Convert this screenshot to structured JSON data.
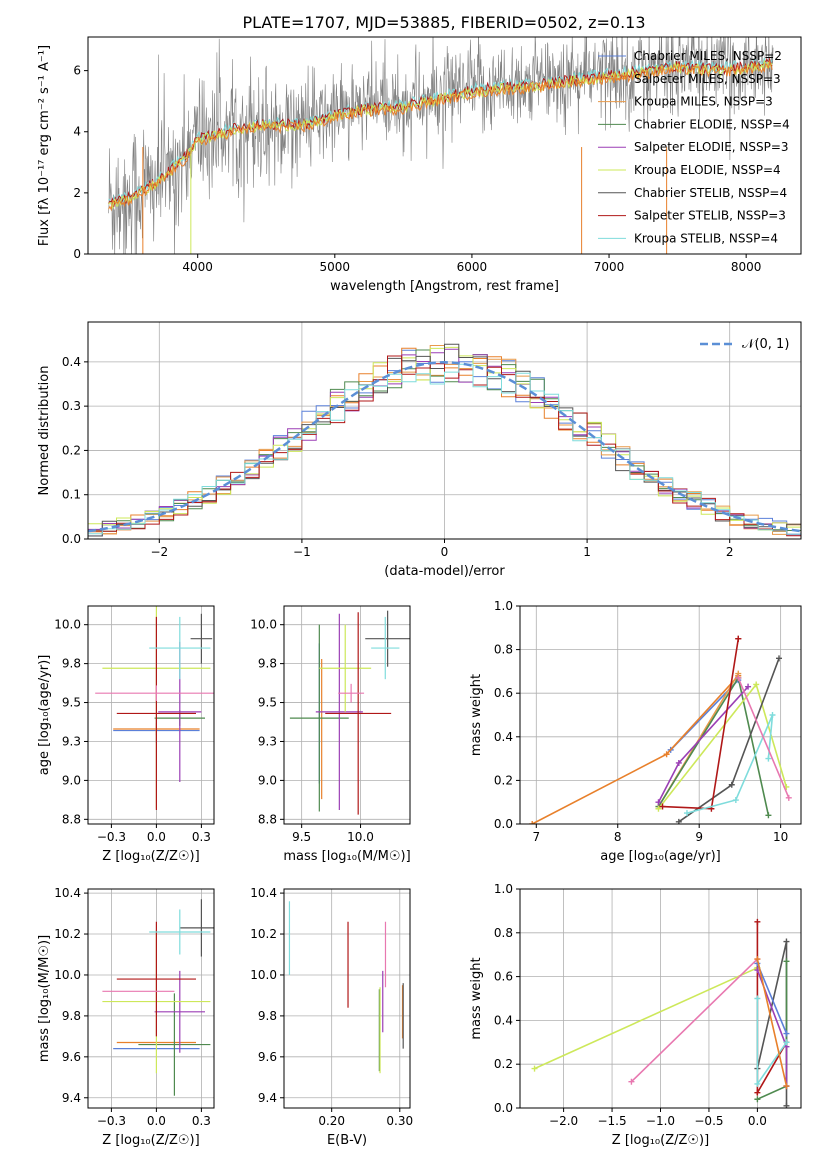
{
  "figure": {
    "title": "PLATE=1707, MJD=53885, FIBERID=0502, z=0.13"
  },
  "colors": {
    "Chabrier MILES": "#5b80d9",
    "Salpeter MILES": "#e8802b",
    "Kroupa MILES": "#e89a4a",
    "Chabrier ELODIE": "#4f8a4f",
    "Salpeter ELODIE": "#9b3fb5",
    "Kroupa ELODIE": "#cde85a",
    "Chabrier STELIB": "#555555",
    "Salpeter STELIB": "#b01818",
    "Kroupa STELIB": "#7fdcdc",
    "extra": "#e878b0",
    "data": "#808080",
    "gauss": "#5b8fd6"
  },
  "chart_data": [
    {
      "type": "line",
      "id": "spectrum",
      "title": "PLATE=1707, MJD=53885, FIBERID=0502, z=0.13",
      "xlabel": "wavelength [Angstrom, rest frame]",
      "ylabel": "Flux [fλ 10⁻¹⁷ erg cm⁻² s⁻¹ A⁻¹]",
      "xlim": [
        3200,
        8400
      ],
      "ylim": [
        0,
        7.1
      ],
      "xticks": [
        4000,
        5000,
        6000,
        7000,
        8000
      ],
      "yticks": [
        0,
        2,
        4,
        6
      ],
      "grid": false,
      "legend_position": "right",
      "legend": [
        "Chabrier MILES, NSSP=2",
        "Salpeter MILES, NSSP=3",
        "Kroupa MILES, NSSP=3",
        "Chabrier ELODIE, NSSP=4",
        "Salpeter ELODIE, NSSP=3",
        "Kroupa ELODIE, NSSP=4",
        "Chabrier STELIB, NSSP=4",
        "Salpeter STELIB, NSSP=3",
        "Kroupa STELIB, NSSP=4"
      ],
      "continuum": {
        "x": [
          3350,
          3500,
          3700,
          3900,
          4000,
          4300,
          4500,
          4800,
          5000,
          5200,
          5500,
          5800,
          6000,
          6200,
          6500,
          6800,
          7000,
          7200,
          7500,
          7800,
          8000,
          8200
        ],
        "y": [
          1.7,
          1.9,
          2.4,
          3.2,
          3.8,
          4.2,
          4.3,
          4.3,
          4.6,
          4.8,
          4.9,
          5.2,
          5.4,
          5.5,
          5.6,
          5.8,
          5.9,
          6.0,
          6.2,
          6.1,
          6.2,
          6.3
        ]
      }
    },
    {
      "type": "bar",
      "id": "residuals",
      "xlabel": "(data-model)/error",
      "ylabel": "Normed distribution",
      "xlim": [
        -2.5,
        2.5
      ],
      "ylim": [
        0,
        0.49
      ],
      "xticks": [
        -2,
        -1,
        0,
        1,
        2
      ],
      "yticks": [
        0.0,
        0.1,
        0.2,
        0.3,
        0.4
      ],
      "grid": true,
      "legend": [
        "𝒩(0, 1)"
      ],
      "legend_position": "top-right",
      "bin_width": 0.1
    },
    {
      "type": "scatter",
      "id": "age-vs-Z",
      "xlabel": "Z [log₁₀(Z/Z☉)]",
      "ylabel": "age  [log₁₀(age/yr)]",
      "xlim": [
        -0.38,
        0.32
      ],
      "ylim": [
        8.72,
        10.12
      ],
      "xticks": [
        -0.25,
        0.0,
        0.25
      ],
      "yticks": [
        8.75,
        9.0,
        9.25,
        9.5,
        9.75,
        10.0
      ],
      "grid": true,
      "errorbars": [
        {
          "c": "Chabrier MILES",
          "x": 0.0,
          "y": 9.32,
          "xerr": 0.24,
          "yerr": 0.08
        },
        {
          "c": "Salpeter MILES",
          "x": 0.0,
          "y": 9.33,
          "xerr": 0.24,
          "yerr": 0.04
        },
        {
          "c": "Chabrier ELODIE",
          "x": 0.13,
          "y": 9.4,
          "xerr": 0.14,
          "yerr": 0.05
        },
        {
          "c": "Salpeter ELODIE",
          "x": 0.13,
          "y": 9.44,
          "xerr": 0.12,
          "yerr": 0.45
        },
        {
          "c": "Kroupa ELODIE",
          "x": 0.0,
          "y": 9.72,
          "xerr": 0.3,
          "yerr": 0.9
        },
        {
          "c": "Chabrier STELIB",
          "x": 0.25,
          "y": 9.91,
          "xerr": 0.06,
          "yerr": 0.16
        },
        {
          "c": "Salpeter STELIB",
          "x": 0.0,
          "y": 9.43,
          "xerr": 0.22,
          "yerr": 0.62
        },
        {
          "c": "Kroupa STELIB",
          "x": 0.13,
          "y": 9.85,
          "xerr": 0.17,
          "yerr": 0.2
        },
        {
          "c": "extra",
          "x": 0.0,
          "y": 9.56,
          "xerr": 0.34,
          "yerr": 0.05
        }
      ]
    },
    {
      "type": "scatter",
      "id": "age-vs-mass",
      "xlabel": "mass [log₁₀(M/M☉)]",
      "xlim": [
        9.35,
        10.42
      ],
      "ylim": [
        8.72,
        10.12
      ],
      "xticks": [
        9.5,
        10.0
      ],
      "yticks": [
        8.75,
        9.0,
        9.25,
        9.5,
        9.75,
        10.0
      ],
      "grid": true,
      "errorbars": [
        {
          "c": "Chabrier MILES",
          "x": 9.65,
          "y": 9.43,
          "xerr": 0.0,
          "yerr": 0.45
        },
        {
          "c": "Salpeter MILES",
          "x": 9.67,
          "y": 9.33,
          "xerr": 0.0,
          "yerr": 0.45
        },
        {
          "c": "Chabrier ELODIE",
          "x": 9.65,
          "y": 9.4,
          "xerr": 0.25,
          "yerr": 0.6
        },
        {
          "c": "Salpeter ELODIE",
          "x": 9.82,
          "y": 9.44,
          "xerr": 0.2,
          "yerr": 0.63
        },
        {
          "c": "Kroupa ELODIE",
          "x": 9.87,
          "y": 9.72,
          "xerr": 0.22,
          "yerr": 0.28
        },
        {
          "c": "Chabrier STELIB",
          "x": 10.23,
          "y": 9.91,
          "xerr": 0.19,
          "yerr": 0.18
        },
        {
          "c": "Salpeter STELIB",
          "x": 9.98,
          "y": 9.43,
          "xerr": 0.28,
          "yerr": 0.65
        },
        {
          "c": "Kroupa STELIB",
          "x": 10.21,
          "y": 9.85,
          "xerr": 0.12,
          "yerr": 0.2
        },
        {
          "c": "extra",
          "x": 9.92,
          "y": 9.56,
          "xerr": 0.11,
          "yerr": 0.06
        }
      ]
    },
    {
      "type": "line",
      "id": "mass-weight-vs-age",
      "xlabel": "age  [log₁₀(age/yr)]",
      "ylabel": "mass weight",
      "xlim": [
        6.8,
        10.25
      ],
      "ylim": [
        0,
        1.0
      ],
      "xticks": [
        7,
        8,
        9,
        10
      ],
      "yticks": [
        0.0,
        0.2,
        0.4,
        0.6,
        0.8,
        1.0
      ],
      "grid": true,
      "series": [
        {
          "c": "Chabrier MILES",
          "x": [
            8.65,
            9.48
          ],
          "y": [
            0.34,
            0.66
          ]
        },
        {
          "c": "Salpeter MILES",
          "x": [
            6.95,
            8.6,
            9.48
          ],
          "y": [
            0.0,
            0.32,
            0.68
          ]
        },
        {
          "c": "Kroupa MILES",
          "x": [
            8.5,
            9.48
          ],
          "y": [
            0.08,
            0.69
          ]
        },
        {
          "c": "Chabrier ELODIE",
          "x": [
            8.5,
            9.48,
            9.85
          ],
          "y": [
            0.08,
            0.67,
            0.04
          ]
        },
        {
          "c": "Salpeter ELODIE",
          "x": [
            8.5,
            8.75,
            9.6
          ],
          "y": [
            0.1,
            0.28,
            0.63
          ]
        },
        {
          "c": "Kroupa ELODIE",
          "x": [
            8.5,
            9.7,
            10.07
          ],
          "y": [
            0.07,
            0.64,
            0.17
          ]
        },
        {
          "c": "Chabrier STELIB",
          "x": [
            8.75,
            9.4,
            9.98
          ],
          "y": [
            0.01,
            0.18,
            0.76
          ]
        },
        {
          "c": "Salpeter STELIB",
          "x": [
            8.55,
            9.15,
            9.48,
            9.48
          ],
          "y": [
            0.08,
            0.07,
            0.85,
            0.85
          ]
        },
        {
          "c": "Kroupa STELIB",
          "x": [
            8.85,
            9.45,
            9.9,
            9.85
          ],
          "y": [
            0.05,
            0.11,
            0.5,
            0.3
          ]
        },
        {
          "c": "extra",
          "x": [
            9.48,
            10.1
          ],
          "y": [
            0.67,
            0.12
          ]
        }
      ]
    },
    {
      "type": "scatter",
      "id": "mass-vs-Z",
      "xlabel": "Z [log₁₀(Z/Z☉)]",
      "ylabel": "mass [log₁₀(M/M☉)]",
      "xlim": [
        -0.38,
        0.32
      ],
      "ylim": [
        9.35,
        10.42
      ],
      "xticks": [
        -0.25,
        0.0,
        0.25
      ],
      "yticks": [
        9.4,
        9.6,
        9.8,
        10.0,
        10.2,
        10.4
      ],
      "grid": true,
      "errorbars": [
        {
          "c": "Chabrier MILES",
          "x": 0.0,
          "y": 9.64,
          "xerr": 0.24,
          "yerr": 0.0
        },
        {
          "c": "Salpeter MILES",
          "x": 0.0,
          "y": 9.67,
          "xerr": 0.22,
          "yerr": 0.0
        },
        {
          "c": "Chabrier ELODIE",
          "x": 0.1,
          "y": 9.66,
          "xerr": 0.2,
          "yerr": 0.25
        },
        {
          "c": "Salpeter ELODIE",
          "x": 0.13,
          "y": 9.82,
          "xerr": 0.14,
          "yerr": 0.2
        },
        {
          "c": "Kroupa ELODIE",
          "x": 0.0,
          "y": 9.87,
          "xerr": 0.3,
          "yerr": 0.35
        },
        {
          "c": "Chabrier STELIB",
          "x": 0.25,
          "y": 10.23,
          "xerr": 0.12,
          "yerr": 0.14
        },
        {
          "c": "Salpeter STELIB",
          "x": 0.0,
          "y": 9.98,
          "xerr": 0.22,
          "yerr": 0.28
        },
        {
          "c": "Kroupa STELIB",
          "x": 0.13,
          "y": 10.21,
          "xerr": 0.17,
          "yerr": 0.11
        },
        {
          "c": "extra",
          "x": -0.1,
          "y": 9.92,
          "xerr": 0.2,
          "yerr": 0.0
        }
      ]
    },
    {
      "type": "scatter",
      "id": "mass-vs-EBV",
      "xlabel": "E(B-V)",
      "xlim": [
        0.13,
        0.315
      ],
      "ylim": [
        9.35,
        10.42
      ],
      "xticks": [
        0.2,
        0.3
      ],
      "yticks": [
        9.4,
        9.6,
        9.8,
        10.0,
        10.2,
        10.4
      ],
      "grid": true,
      "errorbars": [
        {
          "c": "Chabrier MILES",
          "x": 0.275,
          "y": 9.66,
          "xerr": 0.0,
          "yerr": 0.0
        },
        {
          "c": "Salpeter MILES",
          "x": 0.304,
          "y": 9.82,
          "xerr": 0.0,
          "yerr": 0.13
        },
        {
          "c": "Chabrier ELODIE",
          "x": 0.27,
          "y": 9.73,
          "xerr": 0.0,
          "yerr": 0.2
        },
        {
          "c": "Salpeter ELODIE",
          "x": 0.275,
          "y": 9.87,
          "xerr": 0.0,
          "yerr": 0.15
        },
        {
          "c": "Kroupa ELODIE",
          "x": 0.271,
          "y": 9.73,
          "xerr": 0.0,
          "yerr": 0.21
        },
        {
          "c": "Chabrier STELIB",
          "x": 0.305,
          "y": 9.8,
          "xerr": 0.0,
          "yerr": 0.16
        },
        {
          "c": "Salpeter STELIB",
          "x": 0.224,
          "y": 10.05,
          "xerr": 0.0,
          "yerr": 0.21
        },
        {
          "c": "Kroupa STELIB",
          "x": 0.138,
          "y": 10.18,
          "xerr": 0.0,
          "yerr": 0.18
        },
        {
          "c": "extra",
          "x": 0.279,
          "y": 10.1,
          "xerr": 0.0,
          "yerr": 0.16
        }
      ]
    },
    {
      "type": "line",
      "id": "mass-weight-vs-Z",
      "xlabel": "Z [log₁₀(Z/Z☉)]",
      "ylabel": "mass weight",
      "xlim": [
        -2.45,
        0.45
      ],
      "ylim": [
        0,
        1.0
      ],
      "xticks": [
        -2.0,
        -1.5,
        -1.0,
        -0.5,
        0.0
      ],
      "yticks": [
        0.0,
        0.2,
        0.4,
        0.6,
        0.8,
        1.0
      ],
      "grid": true,
      "series": [
        {
          "c": "Kroupa ELODIE",
          "x": [
            -2.3,
            0.0,
            0.0
          ],
          "y": [
            0.18,
            0.64,
            0.64
          ]
        },
        {
          "c": "extra",
          "x": [
            -1.3,
            0.0
          ],
          "y": [
            0.12,
            0.68
          ]
        },
        {
          "c": "Salpeter STELIB",
          "x": [
            0.0,
            0.0,
            0.3
          ],
          "y": [
            0.85,
            0.07,
            0.3
          ]
        },
        {
          "c": "Chabrier STELIB",
          "x": [
            0.0,
            0.3,
            0.3
          ],
          "y": [
            0.18,
            0.76,
            0.01
          ]
        },
        {
          "c": "Chabrier ELODIE",
          "x": [
            0.0,
            0.3,
            0.3
          ],
          "y": [
            0.04,
            0.1,
            0.67
          ]
        },
        {
          "c": "Salpeter ELODIE",
          "x": [
            0.0,
            0.3,
            0.3
          ],
          "y": [
            0.63,
            0.28,
            0.1
          ]
        },
        {
          "c": "Kroupa STELIB",
          "x": [
            0.0,
            0.0,
            0.3
          ],
          "y": [
            0.5,
            0.11,
            0.3
          ]
        },
        {
          "c": "Chabrier MILES",
          "x": [
            0.0,
            0.3
          ],
          "y": [
            0.66,
            0.34
          ]
        },
        {
          "c": "Salpeter MILES",
          "x": [
            0.0,
            0.3
          ],
          "y": [
            0.68,
            0.1
          ]
        }
      ]
    }
  ]
}
